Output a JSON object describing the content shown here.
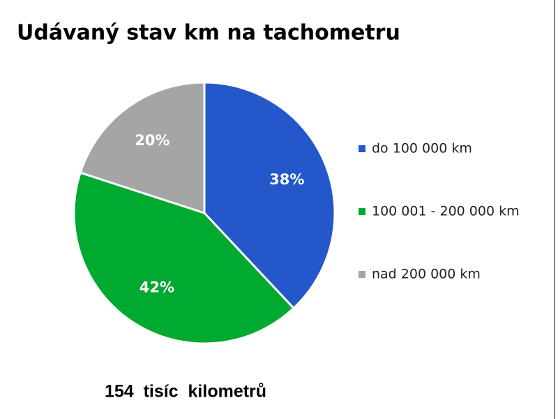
{
  "chart_data": {
    "type": "pie",
    "title": "Udávaný stav km na tachometru",
    "categories": [
      "do 100 000 km",
      "100 001 - 200 000 km",
      "nad 200 000 km"
    ],
    "values": [
      38,
      42,
      20
    ],
    "value_labels": [
      "38%",
      "42%",
      "20%"
    ],
    "colors": [
      "#2457c9",
      "#00a92f",
      "#a5a5a5"
    ],
    "legend": "right",
    "annotation": "154  tisíc  kilometrů"
  }
}
